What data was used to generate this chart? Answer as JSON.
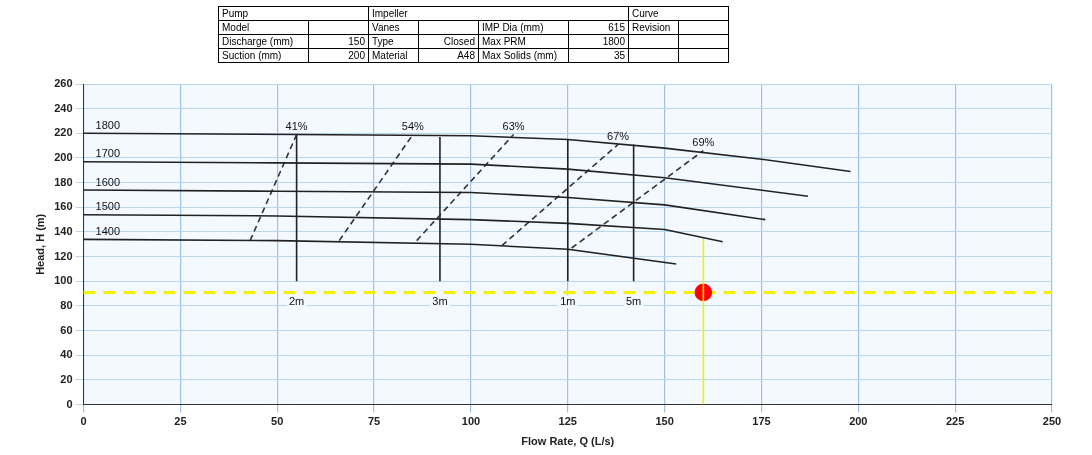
{
  "chart_data": {
    "type": "line",
    "xlabel": "Flow Rate, Q (L/s)",
    "ylabel": "Head, H (m)",
    "xlim": [
      0,
      250
    ],
    "xticks": [
      0,
      25,
      50,
      75,
      100,
      125,
      150,
      175,
      200,
      225,
      250
    ],
    "ylim": [
      0,
      260
    ],
    "yticks": [
      0,
      20,
      40,
      60,
      80,
      100,
      120,
      140,
      160,
      180,
      200,
      220,
      240,
      260
    ],
    "grid": true,
    "legend": false,
    "marker": "none",
    "series": [
      {
        "name": "1800",
        "color": "#222222",
        "x": [
          0,
          55,
          100,
          125,
          150,
          175,
          198
        ],
        "values": [
          220,
          219,
          218,
          215,
          208,
          199,
          189
        ]
      },
      {
        "name": "1700",
        "color": "#222222",
        "x": [
          0,
          50,
          100,
          125,
          150,
          187
        ],
        "values": [
          197,
          196,
          195,
          191,
          184,
          169
        ]
      },
      {
        "name": "1600",
        "color": "#222222",
        "x": [
          0,
          50,
          100,
          125,
          150,
          176
        ],
        "values": [
          174,
          173,
          172,
          168,
          162,
          150
        ]
      },
      {
        "name": "1500",
        "color": "#222222",
        "x": [
          0,
          50,
          100,
          125,
          150,
          165
        ],
        "values": [
          154,
          153,
          150,
          147,
          142,
          132
        ]
      },
      {
        "name": "1400",
        "color": "#222222",
        "x": [
          0,
          50,
          100,
          125,
          153
        ],
        "values": [
          134,
          133,
          130,
          126,
          114
        ]
      },
      {
        "name": "41%",
        "color": "#333333",
        "line_style": "dashed",
        "x": [
          43,
          55
        ],
        "values": [
          133,
          219
        ]
      },
      {
        "name": "54%",
        "color": "#333333",
        "line_style": "dashed",
        "x": [
          66,
          85
        ],
        "values": [
          133,
          219
        ]
      },
      {
        "name": "63%",
        "color": "#333333",
        "line_style": "dashed",
        "x": [
          86,
          111
        ],
        "values": [
          133,
          219
        ]
      },
      {
        "name": "67%",
        "color": "#333333",
        "line_style": "dashed",
        "x": [
          108,
          138
        ],
        "values": [
          129,
          211
        ]
      },
      {
        "name": "69%",
        "color": "#333333",
        "line_style": "dashed",
        "x": [
          126,
          160
        ],
        "values": [
          127,
          206
        ]
      },
      {
        "name": "2m",
        "color": "#222222",
        "x": [
          55,
          55
        ],
        "values": [
          100,
          219
        ]
      },
      {
        "name": "3m",
        "color": "#222222",
        "x": [
          92,
          92
        ],
        "values": [
          100,
          217
        ]
      },
      {
        "name": "1m",
        "color": "#222222",
        "x": [
          125,
          125
        ],
        "values": [
          100,
          215
        ]
      },
      {
        "name": "5m",
        "color": "#222222",
        "x": [
          142,
          142
        ],
        "values": [
          100,
          211
        ]
      },
      {
        "color": "#f2f200",
        "x": [
          160,
          160
        ],
        "values": [
          0,
          135
        ]
      },
      {
        "type": "scatter",
        "marker": "circle",
        "color": "#ff0000",
        "x": [
          160
        ],
        "values": [
          91
        ]
      }
    ],
    "ref_lines": [
      {
        "axis": "y",
        "value": 91,
        "color": "#f2f200",
        "line_style": "dashed"
      }
    ],
    "annotations": [
      "Pump",
      "Impeller",
      "Curve",
      "Model",
      "Vanes",
      "IMP Dia (mm)",
      "615",
      "Revision",
      "Discharge (mm)",
      "150",
      "Type",
      "Closed",
      "Max PRM",
      "1800",
      "Suction (mm)",
      "200",
      "Material",
      "A48",
      "Max Solids (mm)",
      "35"
    ]
  }
}
